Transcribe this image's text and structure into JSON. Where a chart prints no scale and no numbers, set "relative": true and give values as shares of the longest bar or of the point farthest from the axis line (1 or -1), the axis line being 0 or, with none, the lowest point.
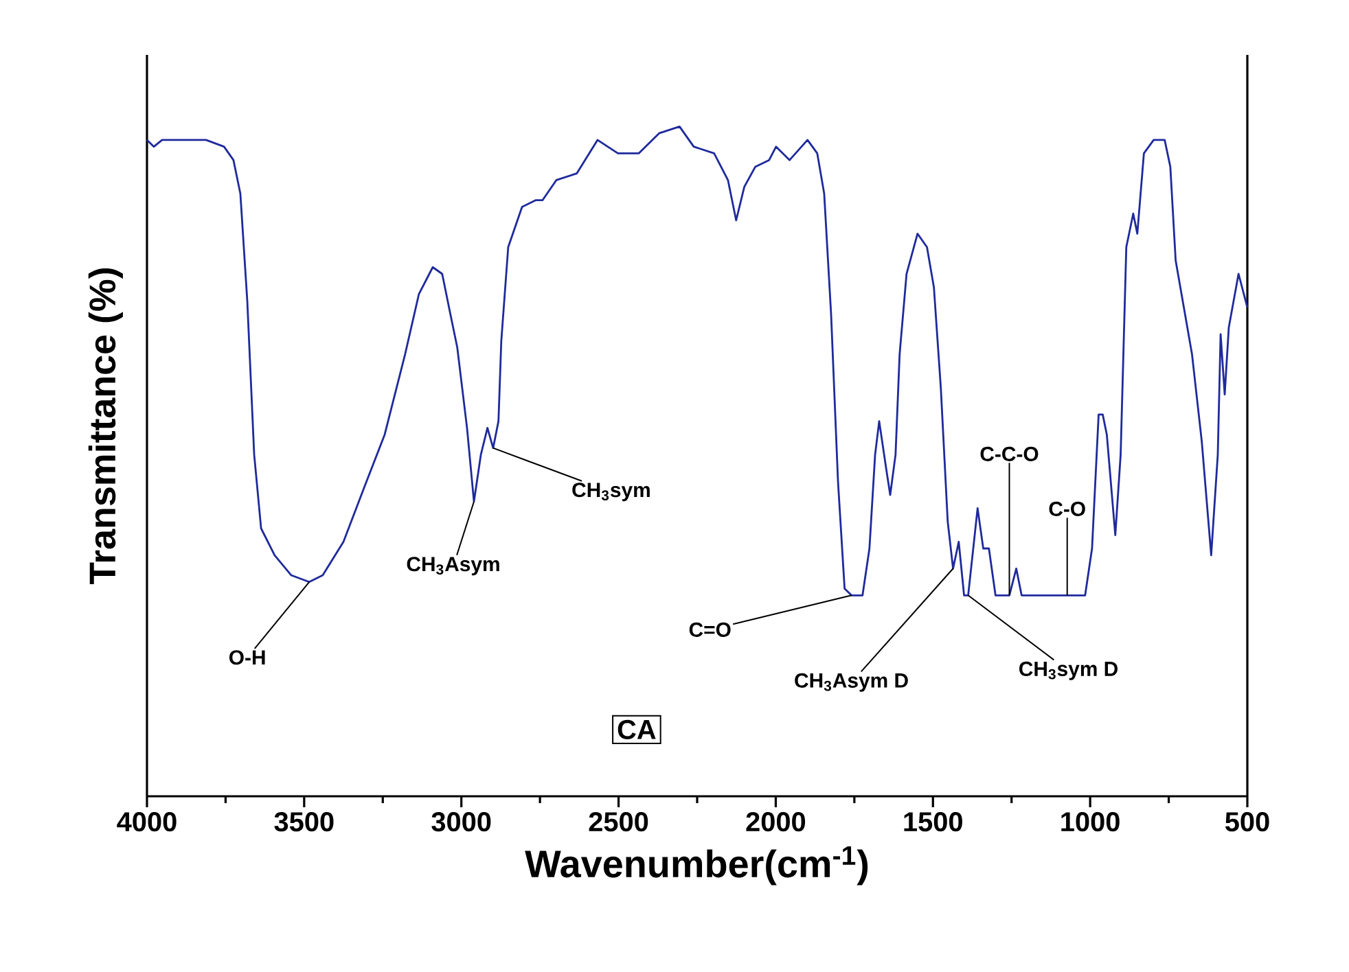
{
  "chart_data": {
    "type": "line",
    "relative": true,
    "xlabel": "Wavenumber(cm$^{-1}$)",
    "ylabel": "Transmittance (%)",
    "xlim": [
      4000,
      500
    ],
    "xticks": [
      4000,
      {
        "value": 3750,
        "label": null
      },
      3500,
      {
        "value": 3250,
        "label": null
      },
      3000,
      {
        "value": 2750,
        "label": null
      },
      2500,
      {
        "value": 2250,
        "label": null
      },
      2000,
      {
        "value": 1750,
        "label": null
      },
      1500,
      {
        "value": 1250,
        "label": null
      },
      1000,
      {
        "value": 750,
        "label": null
      },
      500
    ],
    "x": [
      4000,
      3978,
      3952,
      3812,
      3755,
      3725,
      3703,
      3681,
      3659,
      3637,
      3594,
      3541,
      3484,
      3441,
      3375,
      3310,
      3244,
      3179,
      3135,
      3091,
      3061,
      3035,
      3013,
      2982,
      2960,
      2938,
      2917,
      2899,
      2882,
      2873,
      2851,
      2807,
      2764,
      2742,
      2698,
      2633,
      2567,
      2502,
      2436,
      2371,
      2306,
      2261,
      2196,
      2152,
      2126,
      2100,
      2065,
      2021,
      1999,
      1956,
      1899,
      1868,
      1846,
      1824,
      1802,
      1781,
      1759,
      1724,
      1702,
      1684,
      1671,
      1649,
      1636,
      1619,
      1606,
      1584,
      1549,
      1519,
      1497,
      1475,
      1453,
      1436,
      1418,
      1401,
      1388,
      1358,
      1340,
      1322,
      1301,
      1257,
      1235,
      1218,
      1191,
      1126,
      1016,
      994,
      973,
      960,
      947,
      920,
      903,
      885,
      863,
      850,
      829,
      798,
      763,
      745,
      728,
      702,
      676,
      645,
      615,
      594,
      585,
      572,
      559,
      528,
      500
    ],
    "series": [
      {
        "color": "#1f2a9c",
        "values": [
          0.98,
          0.97,
          0.98,
          0.98,
          0.97,
          0.95,
          0.9,
          0.74,
          0.51,
          0.4,
          0.36,
          0.33,
          0.32,
          0.33,
          0.38,
          0.46,
          0.54,
          0.66,
          0.75,
          0.79,
          0.78,
          0.72,
          0.67,
          0.55,
          0.44,
          0.51,
          0.55,
          0.52,
          0.56,
          0.68,
          0.82,
          0.88,
          0.89,
          0.89,
          0.92,
          0.93,
          0.98,
          0.96,
          0.96,
          0.99,
          1.0,
          0.97,
          0.96,
          0.92,
          0.86,
          0.91,
          0.94,
          0.95,
          0.97,
          0.95,
          0.98,
          0.96,
          0.9,
          0.72,
          0.47,
          0.31,
          0.3,
          0.3,
          0.37,
          0.51,
          0.56,
          0.49,
          0.45,
          0.51,
          0.66,
          0.78,
          0.84,
          0.82,
          0.76,
          0.61,
          0.41,
          0.34,
          0.38,
          0.3,
          0.3,
          0.43,
          0.37,
          0.37,
          0.3,
          0.3,
          0.34,
          0.3,
          0.3,
          0.3,
          0.3,
          0.37,
          0.57,
          0.57,
          0.54,
          0.39,
          0.51,
          0.82,
          0.87,
          0.84,
          0.96,
          0.98,
          0.98,
          0.94,
          0.8,
          0.73,
          0.66,
          0.53,
          0.36,
          0.51,
          0.69,
          0.6,
          0.7,
          0.78,
          0.73
        ]
      }
    ],
    "annotations": [
      {
        "text": "O-H",
        "x": 3484,
        "y": 0.32
      },
      {
        "text": "CH$_{3}$Asym",
        "x": 2960,
        "y": 0.44
      },
      {
        "text": "CH$_{3}$sym",
        "x": 2899,
        "y": 0.52
      },
      {
        "text": "C=O",
        "x": 1759,
        "y": 0.3
      },
      {
        "text": "CH$_{3}$Asym D",
        "x": 1436,
        "y": 0.34
      },
      {
        "text": "CH$_{3}$sym D",
        "x": 1388,
        "y": 0.3
      },
      {
        "text": "C-C-O",
        "x": 1257,
        "y": 0.3
      },
      {
        "text": "C-O",
        "x": 1073,
        "y": 0.3
      },
      "CA"
    ]
  }
}
